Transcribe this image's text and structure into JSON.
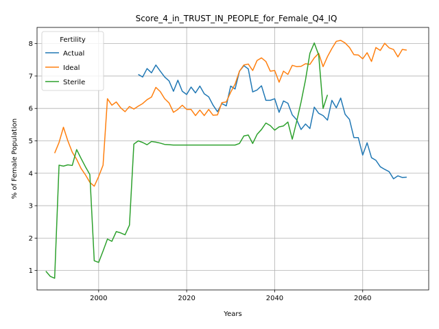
{
  "chart_data": {
    "type": "line",
    "title": "Score_4_in_TRUST_IN_PEOPLE_for_Female_Q4_IQ",
    "xlabel": "Years",
    "ylabel": "% of Female Population",
    "xlim": [
      1986,
      2075
    ],
    "ylim": [
      0.4,
      8.5
    ],
    "xticks": [
      2000,
      2020,
      2040,
      2060
    ],
    "yticks": [
      1,
      2,
      3,
      4,
      5,
      6,
      7,
      8
    ],
    "grid": true,
    "legend": {
      "title": "Fertility",
      "position": "top-left"
    },
    "colors": {
      "Actual": "#1f77b4",
      "Ideal": "#ff7f0e",
      "Sterile": "#2ca02c"
    },
    "series": [
      {
        "name": "Actual",
        "x": [
          2009,
          2010,
          2011,
          2012,
          2013,
          2014,
          2015,
          2016,
          2017,
          2018,
          2019,
          2020,
          2021,
          2022,
          2023,
          2024,
          2025,
          2026,
          2027,
          2028,
          2029,
          2030,
          2031,
          2032,
          2033,
          2034,
          2035,
          2036,
          2037,
          2038,
          2039,
          2040,
          2041,
          2042,
          2043,
          2044,
          2045,
          2046,
          2047,
          2048,
          2049,
          2050,
          2051,
          2052,
          2053,
          2054,
          2055,
          2056,
          2057,
          2058,
          2059,
          2060,
          2061,
          2062,
          2063,
          2064,
          2065,
          2066,
          2067,
          2068,
          2069,
          2070
        ],
        "values": [
          7.05,
          6.97,
          7.23,
          7.1,
          7.34,
          7.15,
          6.97,
          6.85,
          6.53,
          6.87,
          6.53,
          6.43,
          6.66,
          6.48,
          6.69,
          6.45,
          6.36,
          6.1,
          5.9,
          6.15,
          6.08,
          6.69,
          6.6,
          7.15,
          7.32,
          7.22,
          6.51,
          6.57,
          6.7,
          6.25,
          6.25,
          6.3,
          5.88,
          6.23,
          6.16,
          5.8,
          5.65,
          5.35,
          5.52,
          5.38,
          6.04,
          5.85,
          5.78,
          5.64,
          6.25,
          6.02,
          6.32,
          5.82,
          5.66,
          5.1,
          5.1,
          4.56,
          4.94,
          4.48,
          4.4,
          4.2,
          4.12,
          4.05,
          3.83,
          3.92,
          3.87,
          3.88
        ]
      },
      {
        "name": "Ideal",
        "x": [
          1990,
          1991,
          1992,
          1993,
          1994,
          1995,
          1996,
          1997,
          1998,
          1999,
          2000,
          2001,
          2002,
          2003,
          2004,
          2005,
          2006,
          2007,
          2008,
          2009,
          2010,
          2011,
          2012,
          2013,
          2014,
          2015,
          2016,
          2017,
          2018,
          2019,
          2020,
          2021,
          2022,
          2023,
          2024,
          2025,
          2026,
          2027,
          2028,
          2029,
          2030,
          2031,
          2032,
          2033,
          2034,
          2035,
          2036,
          2037,
          2038,
          2039,
          2040,
          2041,
          2042,
          2043,
          2044,
          2045,
          2046,
          2047,
          2048,
          2049,
          2050,
          2051,
          2052,
          2053,
          2054,
          2055,
          2056,
          2057,
          2058,
          2059,
          2060,
          2061,
          2062,
          2063,
          2064,
          2065,
          2066,
          2067,
          2068,
          2069,
          2070
        ],
        "values": [
          4.62,
          4.95,
          5.42,
          5.0,
          4.65,
          4.43,
          4.15,
          3.95,
          3.72,
          3.6,
          3.9,
          4.25,
          6.3,
          6.1,
          6.2,
          6.02,
          5.9,
          6.06,
          5.98,
          6.07,
          6.15,
          6.27,
          6.35,
          6.65,
          6.52,
          6.3,
          6.17,
          5.88,
          5.97,
          6.1,
          5.97,
          5.97,
          5.78,
          5.95,
          5.78,
          5.97,
          5.79,
          5.8,
          6.18,
          6.2,
          6.5,
          6.75,
          7.15,
          7.34,
          7.37,
          7.17,
          7.48,
          7.56,
          7.45,
          7.15,
          7.17,
          6.81,
          7.15,
          7.05,
          7.33,
          7.29,
          7.3,
          7.38,
          7.36,
          7.56,
          7.7,
          7.29,
          7.6,
          7.85,
          8.07,
          8.1,
          8.02,
          7.88,
          7.66,
          7.65,
          7.53,
          7.72,
          7.45,
          7.88,
          7.79,
          8.01,
          7.87,
          7.82,
          7.59,
          7.82,
          7.8
        ]
      },
      {
        "name": "Sterile",
        "x": [
          1988,
          1989,
          1990,
          1991,
          1992,
          1993,
          1994,
          1995,
          1996,
          1997,
          1998,
          1999,
          2000,
          2001,
          2002,
          2003,
          2004,
          2005,
          2006,
          2007,
          2008,
          2009,
          2010,
          2011,
          2012,
          2013,
          2014,
          2015,
          2016,
          2017,
          2018,
          2019,
          2020,
          2021,
          2022,
          2023,
          2024,
          2025,
          2026,
          2027,
          2028,
          2029,
          2030,
          2031,
          2032,
          2033,
          2034,
          2035,
          2036,
          2037,
          2038,
          2039,
          2040,
          2041,
          2042,
          2043,
          2044,
          2045,
          2046,
          2047,
          2048,
          2049,
          2050,
          2051,
          2052
        ],
        "values": [
          0.98,
          0.82,
          0.76,
          4.25,
          4.22,
          4.26,
          4.24,
          4.73,
          4.46,
          4.2,
          3.96,
          1.3,
          1.25,
          1.6,
          1.97,
          1.9,
          2.2,
          2.16,
          2.1,
          2.4,
          4.9,
          5.0,
          4.95,
          4.88,
          4.98,
          4.96,
          4.93,
          4.89,
          4.88,
          4.87,
          4.87,
          4.87,
          4.87,
          4.87,
          4.87,
          4.87,
          4.87,
          4.87,
          4.87,
          4.87,
          4.87,
          4.87,
          4.87,
          4.87,
          4.92,
          5.15,
          5.18,
          4.92,
          5.2,
          5.35,
          5.55,
          5.47,
          5.33,
          5.43,
          5.46,
          5.58,
          5.05,
          5.6,
          6.2,
          6.88,
          7.7,
          8.02,
          7.65,
          6.0,
          6.42
        ]
      }
    ]
  }
}
